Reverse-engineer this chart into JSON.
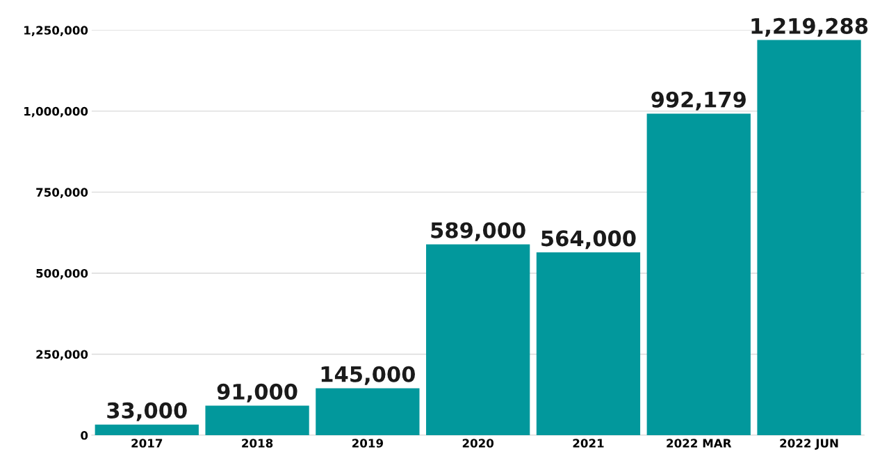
{
  "chart_data": {
    "type": "bar",
    "categories": [
      "2017",
      "2018",
      "2019",
      "2020",
      "2021",
      "2022 MAR",
      "2022 JUN"
    ],
    "values": [
      33000,
      91000,
      145000,
      589000,
      564000,
      992179,
      1219288
    ],
    "color": "#02989c",
    "ylim": [
      0,
      1250000
    ],
    "yticks": [
      {
        "value": 0,
        "label": "0"
      },
      {
        "value": 250000,
        "label": "250,000"
      },
      {
        "value": 500000,
        "label": "500,000"
      },
      {
        "value": 750000,
        "label": "750,000"
      },
      {
        "value": 1000000,
        "label": "1,000,000"
      },
      {
        "value": 1250000,
        "label": "1,250,000"
      }
    ],
    "value_labels": [
      "33,000",
      "91,000",
      "145,000",
      "589,000",
      "564,000",
      "992,179",
      "1,219,288"
    ],
    "grid": "y",
    "legend": false
  }
}
